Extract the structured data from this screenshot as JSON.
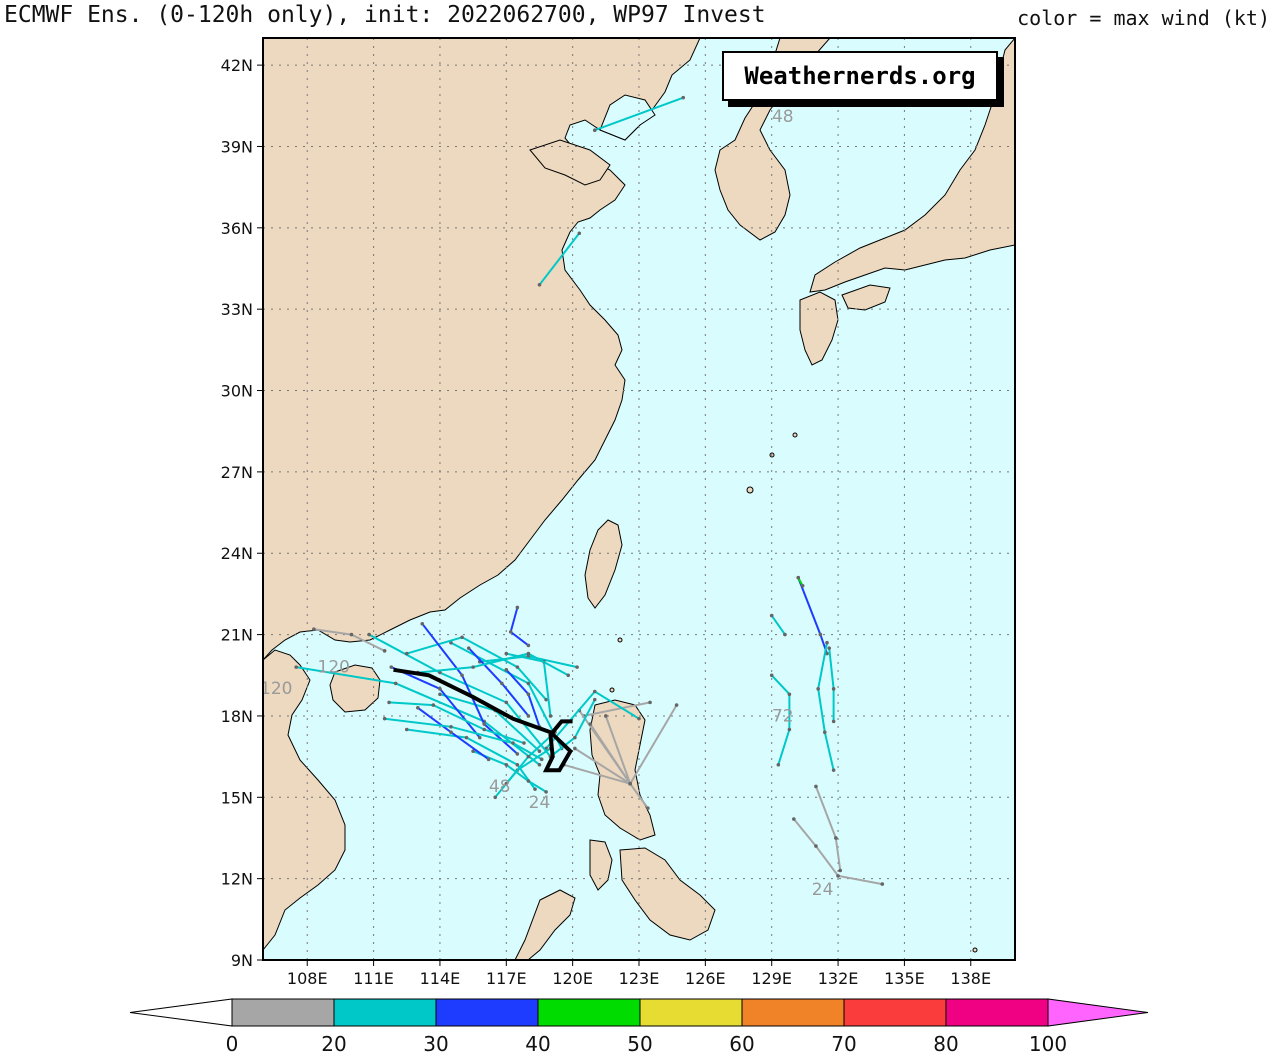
{
  "header": {
    "title": "ECMWF Ens. (0-120h only), init: 2022062700, WP97 Invest",
    "color_legend_note": "color = max wind (kt)"
  },
  "watermark": "Weathernerds.org",
  "map": {
    "lon_range": [
      106,
      140
    ],
    "lat_range": [
      9,
      43
    ],
    "lat_ticks": [
      "9N",
      "12N",
      "15N",
      "18N",
      "21N",
      "24N",
      "27N",
      "30N",
      "33N",
      "36N",
      "39N",
      "42N"
    ],
    "lon_ticks": [
      "108E",
      "111E",
      "114E",
      "117E",
      "120E",
      "123E",
      "126E",
      "129E",
      "132E",
      "135E",
      "138E"
    ],
    "grid": "dotted",
    "land_color": "#ecd9bf",
    "ocean_color": "#d9fdff",
    "hour_labels": [
      {
        "text": "48",
        "lon": 129.5,
        "lat": 39.9
      },
      {
        "text": "120",
        "lon": 109.2,
        "lat": 19.6
      },
      {
        "text": "120",
        "lon": 106.6,
        "lat": 18.8
      },
      {
        "text": "72",
        "lon": 129.5,
        "lat": 17.8
      },
      {
        "text": "48",
        "lon": 116.7,
        "lat": 15.2
      },
      {
        "text": "24",
        "lon": 118.5,
        "lat": 14.6
      },
      {
        "text": "24",
        "lon": 131.3,
        "lat": 11.4
      }
    ]
  },
  "colorbar": {
    "ticks": [
      "0",
      "20",
      "30",
      "40",
      "50",
      "60",
      "70",
      "80",
      "100"
    ],
    "colors": [
      "#a6a6a6",
      "#00c8c8",
      "#1e3cff",
      "#00dc00",
      "#e6dc32",
      "#f08228",
      "#fa3c3c",
      "#f00082"
    ],
    "over_color": "#ff64ff"
  }
}
